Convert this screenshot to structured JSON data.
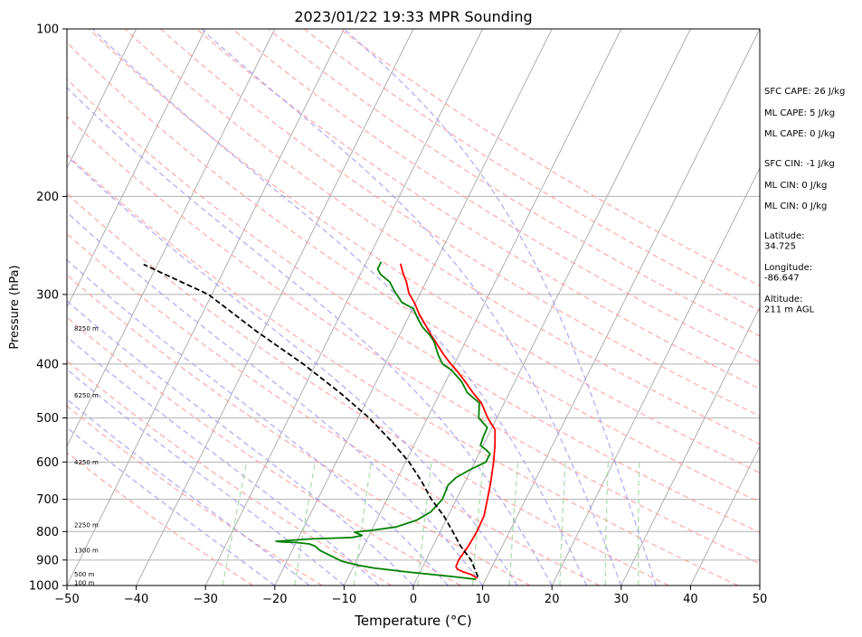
{
  "chart_data": {
    "type": "line",
    "title": "2023/01/22 19:33 MPR Sounding",
    "xlabel": "Temperature (°C)",
    "ylabel": "Pressure (hPa)",
    "xlim": [
      -50,
      50
    ],
    "ylim": [
      1000,
      100
    ],
    "y_scale": "log",
    "grid": true,
    "x_ticks": [
      "−50",
      "−40",
      "−30",
      "−20",
      "−10",
      "0",
      "10",
      "20",
      "30",
      "40",
      "50"
    ],
    "y_ticks": [
      "100",
      "200",
      "300",
      "400",
      "500",
      "600",
      "700",
      "800",
      "900",
      "1000"
    ],
    "series": [
      {
        "id": "temperature",
        "color": "#ff0000",
        "style": "solid",
        "points": [
          [
            8.7,
            970
          ],
          [
            7.5,
            955
          ],
          [
            6.2,
            945
          ],
          [
            5.2,
            935
          ],
          [
            4.8,
            925
          ],
          [
            4.7,
            900
          ],
          [
            5.1,
            850
          ],
          [
            5.3,
            800
          ],
          [
            5.2,
            750
          ],
          [
            4.5,
            700
          ],
          [
            3.7,
            650
          ],
          [
            2.7,
            600
          ],
          [
            1.7,
            560
          ],
          [
            0.6,
            525
          ],
          [
            -1.3,
            500
          ],
          [
            -3.3,
            470
          ],
          [
            -5.3,
            450
          ],
          [
            -7.2,
            430
          ],
          [
            -9.3,
            410
          ],
          [
            -10.5,
            400
          ],
          [
            -12.2,
            385
          ],
          [
            -14.3,
            365
          ],
          [
            -15.3,
            356
          ],
          [
            -16.7,
            343
          ],
          [
            -18.7,
            325
          ],
          [
            -20.0,
            312
          ],
          [
            -21.7,
            298
          ],
          [
            -22.8,
            285
          ],
          [
            -23.9,
            275
          ],
          [
            -25.0,
            264
          ]
        ]
      },
      {
        "id": "dewpoint",
        "color": "#008000",
        "style": "solid",
        "points": [
          [
            8.6,
            975
          ],
          [
            5.5,
            965
          ],
          [
            -2.0,
            945
          ],
          [
            -7.0,
            930
          ],
          [
            -9.3,
            920
          ],
          [
            -12.0,
            905
          ],
          [
            -14.0,
            885
          ],
          [
            -16.0,
            865
          ],
          [
            -17.0,
            850
          ],
          [
            -18.0,
            842
          ],
          [
            -20.0,
            837
          ],
          [
            -22.0,
            835
          ],
          [
            -23.0,
            833
          ],
          [
            -18.2,
            825
          ],
          [
            -12.3,
            820
          ],
          [
            -11.0,
            813
          ],
          [
            -12.3,
            802
          ],
          [
            -9.7,
            795
          ],
          [
            -6.7,
            785
          ],
          [
            -4.2,
            763
          ],
          [
            -2.8,
            738
          ],
          [
            -2.0,
            700
          ],
          [
            -2.2,
            660
          ],
          [
            -1.6,
            640
          ],
          [
            -0.2,
            620
          ],
          [
            1.6,
            600
          ],
          [
            1.6,
            580
          ],
          [
            0.7,
            570
          ],
          [
            -0.4,
            560
          ],
          [
            -0.6,
            540
          ],
          [
            -0.7,
            520
          ],
          [
            -2.6,
            500
          ],
          [
            -3.6,
            470
          ],
          [
            -6.1,
            450
          ],
          [
            -7.7,
            430
          ],
          [
            -10.0,
            410
          ],
          [
            -11.7,
            400
          ],
          [
            -13.0,
            385
          ],
          [
            -14.5,
            365
          ],
          [
            -15.5,
            356
          ],
          [
            -17.3,
            343
          ],
          [
            -18.7,
            330
          ],
          [
            -19.9,
            318
          ],
          [
            -22.0,
            310
          ],
          [
            -24.0,
            295
          ],
          [
            -25.2,
            285
          ],
          [
            -27.1,
            276
          ],
          [
            -27.9,
            270
          ],
          [
            -27.9,
            262
          ]
        ]
      },
      {
        "id": "parcel",
        "color": "#000000",
        "style": "dashed",
        "points": [
          [
            8.7,
            965
          ],
          [
            6.5,
            900
          ],
          [
            4.0,
            850
          ],
          [
            1.8,
            800
          ],
          [
            -0.6,
            750
          ],
          [
            -3.6,
            700
          ],
          [
            -6.3,
            650
          ],
          [
            -9.5,
            600
          ],
          [
            -13.6,
            550
          ],
          [
            -18.4,
            500
          ],
          [
            -24.5,
            450
          ],
          [
            -31.8,
            400
          ],
          [
            -40.8,
            350
          ],
          [
            -50.5,
            300
          ],
          [
            -62.0,
            265
          ]
        ]
      }
    ],
    "dry_adiabats_theta_k": [
      250,
      260,
      270,
      280,
      290,
      300,
      310,
      320,
      330,
      340,
      350,
      360,
      370,
      380,
      390,
      400,
      410,
      420,
      430
    ],
    "moist_adiabats_start_c_at_1000": [
      -20,
      -15,
      -10,
      -5,
      0,
      5,
      10,
      15,
      20,
      25,
      30,
      35
    ],
    "mixing_ratio_lines_gkg": [
      0.4,
      1,
      2,
      4,
      7,
      10,
      16,
      24,
      32
    ],
    "height_labels": [
      {
        "label": "100 m",
        "p": 988
      },
      {
        "label": "500 m",
        "p": 955
      },
      {
        "label": "1300 m",
        "p": 865
      },
      {
        "label": "2250 m",
        "p": 778
      },
      {
        "label": "4250 m",
        "p": 600
      },
      {
        "label": "6250 m",
        "p": 455
      },
      {
        "label": "8250 m",
        "p": 345
      }
    ],
    "annotations": [
      {
        "text": "SFC CAPE: 26 J/kg"
      },
      {
        "text": "ML CAPE: 5 J/kg"
      },
      {
        "text": "ML CAPE: 0 J/kg"
      },
      {
        "text": "SFC CIN: -1 J/kg"
      },
      {
        "text": "ML CIN: 0 J/kg"
      },
      {
        "text": "ML CIN: 0 J/kg"
      },
      {
        "text": "Latitude:\n34.725"
      },
      {
        "text": "Longitude:\n-86.647"
      },
      {
        "text": "Altitude:\n211 m AGL"
      }
    ],
    "colors": {
      "temperature": "#ff0000",
      "dewpoint": "#008000",
      "parcel": "#000000",
      "dry_adiabat": "#ff9a9a",
      "moist_adiabat": "#9b91f0",
      "mixing_ratio": "#8fd08f",
      "isotherm": "#a8a8a8",
      "isobar": "#b0b0b0"
    }
  }
}
